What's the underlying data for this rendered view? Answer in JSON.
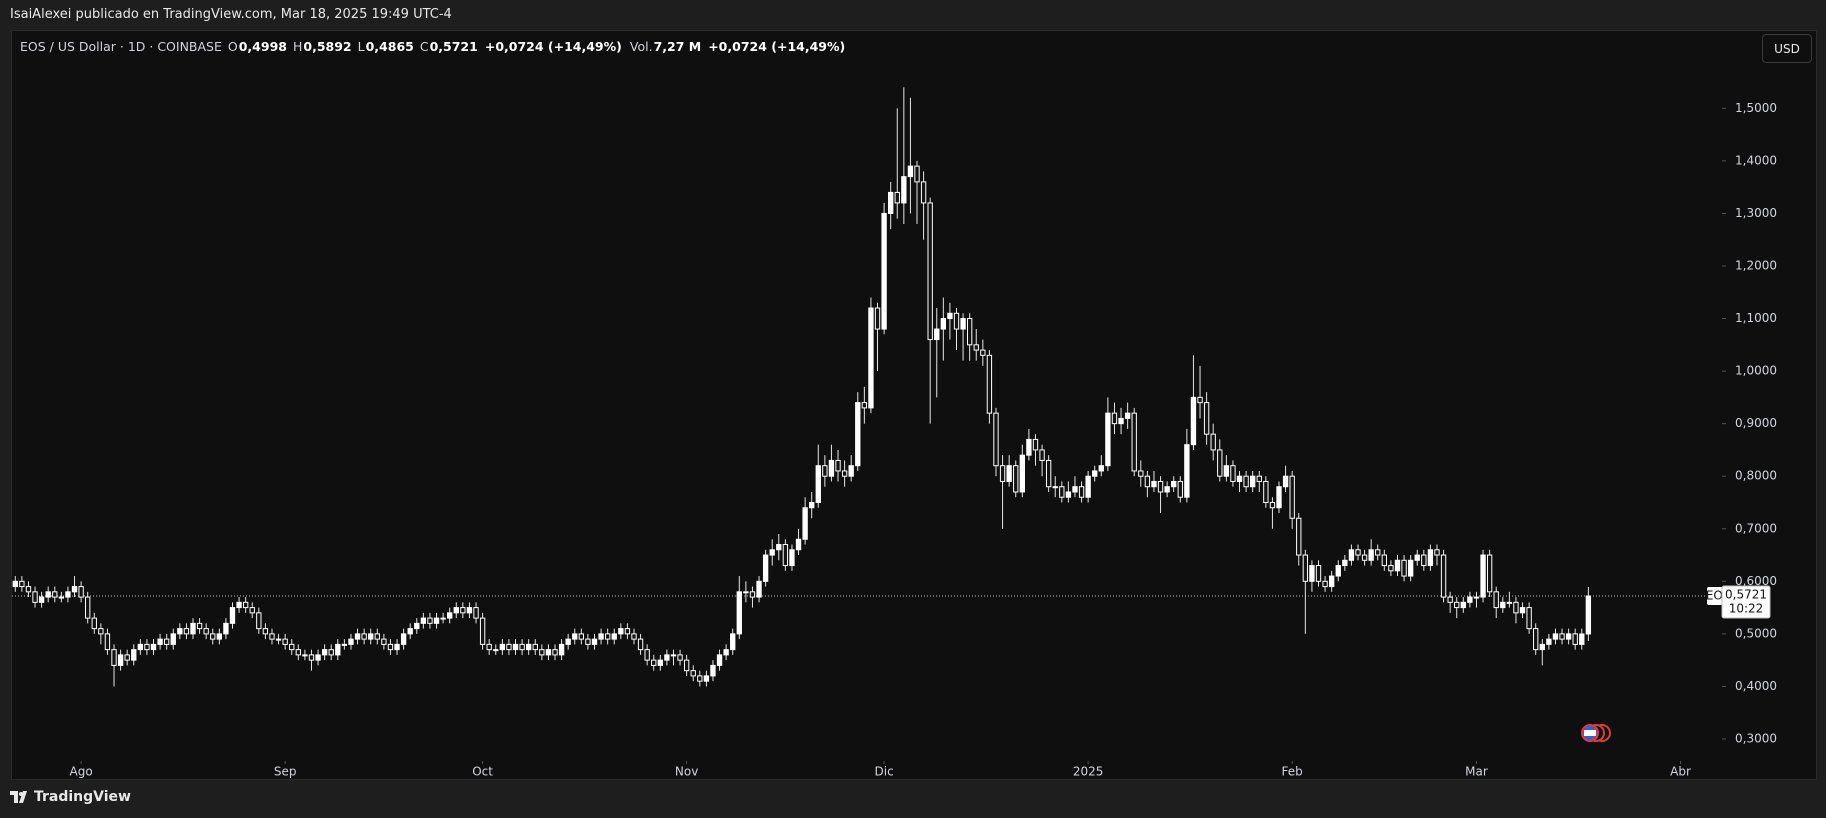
{
  "header": {
    "byline": "IsaiAlexei publicado en TradingView.com, Mar 18, 2025 19:49 UTC-4"
  },
  "footer": {
    "brand": "TradingView"
  },
  "chart_data": {
    "type": "candlestick",
    "title": "EOS / US Dollar · 1D · COINBASE",
    "legend_items": [
      {
        "label": "O",
        "value": "0,4998"
      },
      {
        "label": "H",
        "value": "0,5892"
      },
      {
        "label": "L",
        "value": "0,4865"
      },
      {
        "label": "C",
        "value": "0,5721"
      }
    ],
    "change": "+0,0724 (+14,49%)",
    "volume": {
      "label": "Vol.",
      "value": "7,27 M",
      "change": "+0,0724 (+14,49%)"
    },
    "currency": "USD",
    "symbol": "EOSUSD",
    "last_price": {
      "value": 0.5721,
      "label": "0,5721"
    },
    "countdown": "10:22",
    "up_color": "#ffffff",
    "down_color": "#131313",
    "wick_color": "#e6e6e6",
    "xlim": [
      -0.5,
      259
    ],
    "xticks": [
      {
        "value": 10,
        "label": "Ago"
      },
      {
        "value": 41,
        "label": "Sep"
      },
      {
        "value": 71,
        "label": "Oct"
      },
      {
        "value": 102,
        "label": "Nov"
      },
      {
        "value": 132,
        "label": "Dic"
      },
      {
        "value": 163,
        "label": "2025"
      },
      {
        "value": 194,
        "label": "Feb"
      },
      {
        "value": 222,
        "label": "Mar"
      },
      {
        "value": 253,
        "label": "Abr"
      }
    ],
    "ylim": [
      0.26,
      1.63
    ],
    "yticks": [
      {
        "value": 0.3,
        "label": "0,3000"
      },
      {
        "value": 0.4,
        "label": "0,4000"
      },
      {
        "value": 0.5,
        "label": "0,5000"
      },
      {
        "value": 0.6,
        "label": "0,6000"
      },
      {
        "value": 0.7,
        "label": "0,7000"
      },
      {
        "value": 0.8,
        "label": "0,8000"
      },
      {
        "value": 0.9,
        "label": "0,9000"
      },
      {
        "value": 1.0,
        "label": "1,0000"
      },
      {
        "value": 1.1,
        "label": "1,1000"
      },
      {
        "value": 1.2,
        "label": "1,2000"
      },
      {
        "value": 1.3,
        "label": "1,3000"
      },
      {
        "value": 1.4,
        "label": "1,4000"
      },
      {
        "value": 1.5,
        "label": "1,5000"
      }
    ],
    "candles": [
      [
        0.59,
        0.61,
        0.58,
        0.6
      ],
      [
        0.6,
        0.61,
        0.58,
        0.59
      ],
      [
        0.59,
        0.6,
        0.57,
        0.58
      ],
      [
        0.58,
        0.59,
        0.55,
        0.56
      ],
      [
        0.56,
        0.58,
        0.55,
        0.57
      ],
      [
        0.57,
        0.59,
        0.56,
        0.58
      ],
      [
        0.58,
        0.59,
        0.56,
        0.57
      ],
      [
        0.57,
        0.58,
        0.56,
        0.57
      ],
      [
        0.57,
        0.59,
        0.56,
        0.58
      ],
      [
        0.58,
        0.61,
        0.57,
        0.59
      ],
      [
        0.59,
        0.6,
        0.56,
        0.57
      ],
      [
        0.57,
        0.58,
        0.52,
        0.53
      ],
      [
        0.53,
        0.54,
        0.5,
        0.51
      ],
      [
        0.51,
        0.52,
        0.48,
        0.5
      ],
      [
        0.5,
        0.51,
        0.46,
        0.47
      ],
      [
        0.47,
        0.48,
        0.4,
        0.44
      ],
      [
        0.44,
        0.47,
        0.43,
        0.46
      ],
      [
        0.46,
        0.47,
        0.44,
        0.45
      ],
      [
        0.45,
        0.48,
        0.44,
        0.47
      ],
      [
        0.47,
        0.49,
        0.46,
        0.48
      ],
      [
        0.48,
        0.49,
        0.46,
        0.47
      ],
      [
        0.47,
        0.49,
        0.46,
        0.48
      ],
      [
        0.48,
        0.5,
        0.47,
        0.49
      ],
      [
        0.49,
        0.5,
        0.47,
        0.48
      ],
      [
        0.48,
        0.51,
        0.47,
        0.5
      ],
      [
        0.5,
        0.52,
        0.49,
        0.51
      ],
      [
        0.51,
        0.52,
        0.49,
        0.5
      ],
      [
        0.5,
        0.53,
        0.49,
        0.52
      ],
      [
        0.52,
        0.53,
        0.5,
        0.51
      ],
      [
        0.51,
        0.52,
        0.49,
        0.5
      ],
      [
        0.5,
        0.51,
        0.48,
        0.49
      ],
      [
        0.49,
        0.51,
        0.48,
        0.5
      ],
      [
        0.5,
        0.53,
        0.49,
        0.52
      ],
      [
        0.52,
        0.56,
        0.51,
        0.55
      ],
      [
        0.55,
        0.57,
        0.54,
        0.56
      ],
      [
        0.56,
        0.57,
        0.54,
        0.55
      ],
      [
        0.55,
        0.56,
        0.53,
        0.54
      ],
      [
        0.54,
        0.55,
        0.5,
        0.51
      ],
      [
        0.51,
        0.52,
        0.49,
        0.5
      ],
      [
        0.5,
        0.51,
        0.48,
        0.49
      ],
      [
        0.49,
        0.5,
        0.48,
        0.49
      ],
      [
        0.49,
        0.5,
        0.47,
        0.48
      ],
      [
        0.48,
        0.49,
        0.46,
        0.47
      ],
      [
        0.47,
        0.48,
        0.45,
        0.46
      ],
      [
        0.46,
        0.47,
        0.45,
        0.46
      ],
      [
        0.46,
        0.47,
        0.43,
        0.45
      ],
      [
        0.45,
        0.47,
        0.44,
        0.46
      ],
      [
        0.46,
        0.48,
        0.45,
        0.47
      ],
      [
        0.47,
        0.48,
        0.45,
        0.46
      ],
      [
        0.46,
        0.49,
        0.45,
        0.48
      ],
      [
        0.48,
        0.49,
        0.47,
        0.48
      ],
      [
        0.48,
        0.5,
        0.47,
        0.49
      ],
      [
        0.49,
        0.51,
        0.48,
        0.5
      ],
      [
        0.5,
        0.51,
        0.48,
        0.49
      ],
      [
        0.49,
        0.51,
        0.48,
        0.5
      ],
      [
        0.5,
        0.51,
        0.48,
        0.49
      ],
      [
        0.49,
        0.5,
        0.47,
        0.48
      ],
      [
        0.48,
        0.49,
        0.46,
        0.47
      ],
      [
        0.47,
        0.49,
        0.46,
        0.48
      ],
      [
        0.48,
        0.51,
        0.47,
        0.5
      ],
      [
        0.5,
        0.52,
        0.49,
        0.51
      ],
      [
        0.51,
        0.53,
        0.5,
        0.52
      ],
      [
        0.52,
        0.54,
        0.51,
        0.53
      ],
      [
        0.53,
        0.54,
        0.51,
        0.52
      ],
      [
        0.52,
        0.54,
        0.51,
        0.53
      ],
      [
        0.53,
        0.54,
        0.52,
        0.53
      ],
      [
        0.53,
        0.55,
        0.52,
        0.54
      ],
      [
        0.54,
        0.56,
        0.53,
        0.55
      ],
      [
        0.55,
        0.56,
        0.53,
        0.54
      ],
      [
        0.54,
        0.56,
        0.53,
        0.55
      ],
      [
        0.55,
        0.56,
        0.52,
        0.53
      ],
      [
        0.53,
        0.54,
        0.47,
        0.48
      ],
      [
        0.48,
        0.49,
        0.46,
        0.47
      ],
      [
        0.47,
        0.48,
        0.46,
        0.47
      ],
      [
        0.47,
        0.49,
        0.46,
        0.48
      ],
      [
        0.48,
        0.49,
        0.46,
        0.47
      ],
      [
        0.47,
        0.49,
        0.46,
        0.48
      ],
      [
        0.48,
        0.49,
        0.46,
        0.47
      ],
      [
        0.47,
        0.49,
        0.46,
        0.48
      ],
      [
        0.48,
        0.49,
        0.46,
        0.47
      ],
      [
        0.47,
        0.48,
        0.45,
        0.46
      ],
      [
        0.46,
        0.48,
        0.45,
        0.47
      ],
      [
        0.47,
        0.48,
        0.45,
        0.46
      ],
      [
        0.46,
        0.49,
        0.45,
        0.48
      ],
      [
        0.48,
        0.5,
        0.47,
        0.49
      ],
      [
        0.49,
        0.51,
        0.48,
        0.5
      ],
      [
        0.5,
        0.51,
        0.48,
        0.49
      ],
      [
        0.49,
        0.5,
        0.47,
        0.48
      ],
      [
        0.48,
        0.5,
        0.47,
        0.49
      ],
      [
        0.49,
        0.51,
        0.48,
        0.5
      ],
      [
        0.5,
        0.51,
        0.48,
        0.49
      ],
      [
        0.49,
        0.51,
        0.48,
        0.5
      ],
      [
        0.5,
        0.52,
        0.49,
        0.51
      ],
      [
        0.51,
        0.52,
        0.49,
        0.5
      ],
      [
        0.5,
        0.51,
        0.48,
        0.49
      ],
      [
        0.49,
        0.5,
        0.46,
        0.47
      ],
      [
        0.47,
        0.48,
        0.44,
        0.45
      ],
      [
        0.45,
        0.46,
        0.43,
        0.44
      ],
      [
        0.44,
        0.46,
        0.43,
        0.45
      ],
      [
        0.45,
        0.47,
        0.44,
        0.46
      ],
      [
        0.46,
        0.47,
        0.44,
        0.46
      ],
      [
        0.46,
        0.47,
        0.44,
        0.45
      ],
      [
        0.45,
        0.46,
        0.42,
        0.43
      ],
      [
        0.43,
        0.44,
        0.41,
        0.42
      ],
      [
        0.42,
        0.43,
        0.4,
        0.41
      ],
      [
        0.41,
        0.43,
        0.4,
        0.42
      ],
      [
        0.42,
        0.45,
        0.41,
        0.44
      ],
      [
        0.44,
        0.47,
        0.43,
        0.46
      ],
      [
        0.46,
        0.48,
        0.45,
        0.47
      ],
      [
        0.47,
        0.51,
        0.46,
        0.5
      ],
      [
        0.5,
        0.61,
        0.49,
        0.58
      ],
      [
        0.58,
        0.6,
        0.56,
        0.58
      ],
      [
        0.58,
        0.59,
        0.55,
        0.57
      ],
      [
        0.57,
        0.61,
        0.56,
        0.6
      ],
      [
        0.6,
        0.66,
        0.59,
        0.65
      ],
      [
        0.65,
        0.68,
        0.63,
        0.66
      ],
      [
        0.66,
        0.69,
        0.64,
        0.67
      ],
      [
        0.67,
        0.68,
        0.62,
        0.63
      ],
      [
        0.63,
        0.67,
        0.62,
        0.66
      ],
      [
        0.66,
        0.7,
        0.65,
        0.68
      ],
      [
        0.68,
        0.76,
        0.67,
        0.74
      ],
      [
        0.74,
        0.77,
        0.72,
        0.75
      ],
      [
        0.75,
        0.86,
        0.74,
        0.82
      ],
      [
        0.82,
        0.84,
        0.78,
        0.8
      ],
      [
        0.8,
        0.86,
        0.79,
        0.83
      ],
      [
        0.83,
        0.85,
        0.79,
        0.81
      ],
      [
        0.81,
        0.83,
        0.78,
        0.8
      ],
      [
        0.8,
        0.84,
        0.79,
        0.82
      ],
      [
        0.82,
        0.96,
        0.81,
        0.94
      ],
      [
        0.94,
        0.97,
        0.9,
        0.93
      ],
      [
        0.93,
        1.14,
        0.92,
        1.12
      ],
      [
        1.12,
        1.13,
        1.0,
        1.08
      ],
      [
        1.08,
        1.32,
        1.07,
        1.3
      ],
      [
        1.3,
        1.36,
        1.27,
        1.34
      ],
      [
        1.34,
        1.5,
        1.29,
        1.32
      ],
      [
        1.32,
        1.54,
        1.28,
        1.37
      ],
      [
        1.37,
        1.52,
        1.3,
        1.39
      ],
      [
        1.39,
        1.4,
        1.28,
        1.36
      ],
      [
        1.36,
        1.38,
        1.25,
        1.32
      ],
      [
        1.32,
        1.33,
        0.9,
        1.06
      ],
      [
        1.06,
        1.12,
        0.95,
        1.08
      ],
      [
        1.08,
        1.14,
        1.02,
        1.1
      ],
      [
        1.1,
        1.13,
        1.06,
        1.11
      ],
      [
        1.11,
        1.12,
        1.04,
        1.08
      ],
      [
        1.08,
        1.11,
        1.02,
        1.1
      ],
      [
        1.1,
        1.11,
        1.02,
        1.05
      ],
      [
        1.05,
        1.08,
        1.02,
        1.04
      ],
      [
        1.04,
        1.06,
        1.01,
        1.03
      ],
      [
        1.03,
        1.04,
        0.9,
        0.92
      ],
      [
        0.92,
        0.93,
        0.8,
        0.82
      ],
      [
        0.82,
        0.84,
        0.7,
        0.79
      ],
      [
        0.79,
        0.84,
        0.78,
        0.82
      ],
      [
        0.82,
        0.83,
        0.76,
        0.77
      ],
      [
        0.77,
        0.86,
        0.76,
        0.84
      ],
      [
        0.84,
        0.89,
        0.83,
        0.87
      ],
      [
        0.87,
        0.88,
        0.82,
        0.85
      ],
      [
        0.85,
        0.86,
        0.8,
        0.83
      ],
      [
        0.83,
        0.84,
        0.77,
        0.78
      ],
      [
        0.78,
        0.8,
        0.76,
        0.78
      ],
      [
        0.78,
        0.79,
        0.75,
        0.76
      ],
      [
        0.76,
        0.79,
        0.75,
        0.77
      ],
      [
        0.77,
        0.8,
        0.76,
        0.78
      ],
      [
        0.78,
        0.79,
        0.75,
        0.76
      ],
      [
        0.76,
        0.81,
        0.75,
        0.8
      ],
      [
        0.8,
        0.82,
        0.79,
        0.81
      ],
      [
        0.81,
        0.84,
        0.8,
        0.82
      ],
      [
        0.82,
        0.95,
        0.81,
        0.92
      ],
      [
        0.92,
        0.94,
        0.88,
        0.9
      ],
      [
        0.9,
        0.93,
        0.88,
        0.91
      ],
      [
        0.91,
        0.94,
        0.89,
        0.92
      ],
      [
        0.92,
        0.93,
        0.8,
        0.81
      ],
      [
        0.81,
        0.83,
        0.78,
        0.8
      ],
      [
        0.8,
        0.81,
        0.76,
        0.78
      ],
      [
        0.78,
        0.81,
        0.77,
        0.79
      ],
      [
        0.79,
        0.8,
        0.73,
        0.77
      ],
      [
        0.77,
        0.79,
        0.76,
        0.78
      ],
      [
        0.78,
        0.8,
        0.77,
        0.79
      ],
      [
        0.79,
        0.8,
        0.75,
        0.76
      ],
      [
        0.76,
        0.89,
        0.75,
        0.86
      ],
      [
        0.86,
        1.03,
        0.85,
        0.95
      ],
      [
        0.95,
        1.01,
        0.91,
        0.94
      ],
      [
        0.94,
        0.96,
        0.86,
        0.88
      ],
      [
        0.88,
        0.9,
        0.83,
        0.85
      ],
      [
        0.85,
        0.87,
        0.79,
        0.8
      ],
      [
        0.8,
        0.84,
        0.79,
        0.82
      ],
      [
        0.82,
        0.83,
        0.78,
        0.79
      ],
      [
        0.79,
        0.81,
        0.77,
        0.8
      ],
      [
        0.8,
        0.81,
        0.77,
        0.78
      ],
      [
        0.78,
        0.81,
        0.77,
        0.8
      ],
      [
        0.8,
        0.81,
        0.77,
        0.79
      ],
      [
        0.79,
        0.8,
        0.74,
        0.75
      ],
      [
        0.75,
        0.76,
        0.7,
        0.74
      ],
      [
        0.74,
        0.79,
        0.73,
        0.78
      ],
      [
        0.78,
        0.82,
        0.77,
        0.8
      ],
      [
        0.8,
        0.81,
        0.7,
        0.72
      ],
      [
        0.72,
        0.73,
        0.63,
        0.65
      ],
      [
        0.65,
        0.66,
        0.5,
        0.6
      ],
      [
        0.6,
        0.64,
        0.58,
        0.63
      ],
      [
        0.63,
        0.64,
        0.59,
        0.6
      ],
      [
        0.6,
        0.61,
        0.58,
        0.59
      ],
      [
        0.59,
        0.62,
        0.58,
        0.61
      ],
      [
        0.61,
        0.64,
        0.6,
        0.63
      ],
      [
        0.63,
        0.65,
        0.62,
        0.64
      ],
      [
        0.64,
        0.67,
        0.63,
        0.66
      ],
      [
        0.66,
        0.67,
        0.64,
        0.65
      ],
      [
        0.65,
        0.66,
        0.63,
        0.64
      ],
      [
        0.64,
        0.68,
        0.63,
        0.66
      ],
      [
        0.66,
        0.67,
        0.64,
        0.65
      ],
      [
        0.65,
        0.66,
        0.62,
        0.63
      ],
      [
        0.63,
        0.64,
        0.61,
        0.62
      ],
      [
        0.62,
        0.65,
        0.61,
        0.64
      ],
      [
        0.64,
        0.65,
        0.6,
        0.61
      ],
      [
        0.61,
        0.65,
        0.6,
        0.64
      ],
      [
        0.64,
        0.66,
        0.63,
        0.65
      ],
      [
        0.65,
        0.66,
        0.62,
        0.63
      ],
      [
        0.63,
        0.67,
        0.62,
        0.66
      ],
      [
        0.66,
        0.67,
        0.63,
        0.65
      ],
      [
        0.65,
        0.66,
        0.56,
        0.57
      ],
      [
        0.57,
        0.58,
        0.54,
        0.56
      ],
      [
        0.56,
        0.57,
        0.53,
        0.55
      ],
      [
        0.55,
        0.57,
        0.54,
        0.56
      ],
      [
        0.56,
        0.58,
        0.55,
        0.57
      ],
      [
        0.57,
        0.58,
        0.55,
        0.57
      ],
      [
        0.57,
        0.66,
        0.56,
        0.65
      ],
      [
        0.65,
        0.66,
        0.57,
        0.58
      ],
      [
        0.58,
        0.59,
        0.53,
        0.55
      ],
      [
        0.55,
        0.57,
        0.54,
        0.56
      ],
      [
        0.56,
        0.58,
        0.55,
        0.56
      ],
      [
        0.56,
        0.57,
        0.52,
        0.54
      ],
      [
        0.54,
        0.56,
        0.53,
        0.55
      ],
      [
        0.55,
        0.56,
        0.5,
        0.51
      ],
      [
        0.51,
        0.52,
        0.46,
        0.47
      ],
      [
        0.47,
        0.49,
        0.44,
        0.48
      ],
      [
        0.48,
        0.5,
        0.47,
        0.49
      ],
      [
        0.49,
        0.51,
        0.48,
        0.5
      ],
      [
        0.5,
        0.51,
        0.48,
        0.49
      ],
      [
        0.49,
        0.51,
        0.48,
        0.5
      ],
      [
        0.5,
        0.51,
        0.47,
        0.48
      ],
      [
        0.48,
        0.51,
        0.47,
        0.4998
      ],
      [
        0.4998,
        0.5892,
        0.4865,
        0.5721
      ]
    ]
  }
}
